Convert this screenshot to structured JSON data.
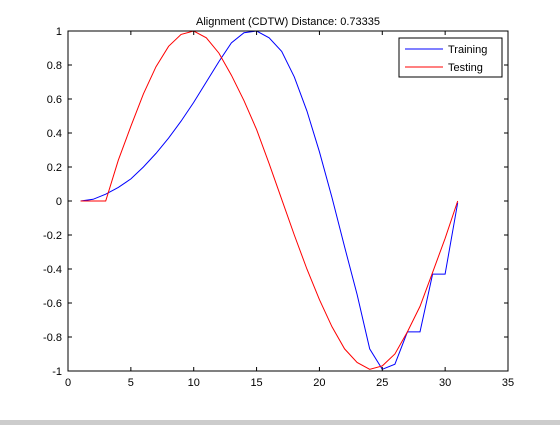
{
  "chart_data": {
    "type": "line",
    "title": "Alignment (CDTW) Distance:  0.73335",
    "xlabel": "",
    "ylabel": "",
    "xlim": [
      0,
      35
    ],
    "ylim": [
      -1,
      1
    ],
    "xticks": [
      0,
      5,
      10,
      15,
      20,
      25,
      30,
      35
    ],
    "yticks": [
      -1,
      -0.8,
      -0.6,
      -0.4,
      -0.2,
      0,
      0.2,
      0.4,
      0.6,
      0.8,
      1
    ],
    "grid": false,
    "legend_position": "top-right",
    "series": [
      {
        "name": "Training",
        "color": "#0000ff",
        "x": [
          1,
          2,
          3,
          4,
          5,
          6,
          7,
          8,
          9,
          10,
          11,
          12,
          13,
          14,
          15,
          16,
          17,
          18,
          19,
          20,
          21,
          22,
          23,
          24,
          25,
          26,
          27,
          28,
          29,
          30,
          31
        ],
        "y": [
          0,
          0.01,
          0.04,
          0.08,
          0.13,
          0.2,
          0.28,
          0.37,
          0.47,
          0.58,
          0.7,
          0.82,
          0.93,
          0.99,
          1.0,
          0.96,
          0.88,
          0.73,
          0.53,
          0.29,
          0.02,
          -0.27,
          -0.55,
          -0.87,
          -0.99,
          -0.96,
          -0.77,
          -0.77,
          -0.43,
          -0.43,
          -0.01
        ]
      },
      {
        "name": "Testing",
        "color": "#ff0000",
        "x": [
          1,
          2,
          3,
          4,
          5,
          6,
          7,
          8,
          9,
          10,
          11,
          12,
          13,
          14,
          15,
          16,
          17,
          18,
          19,
          20,
          21,
          22,
          23,
          24,
          25,
          26,
          27,
          28,
          29,
          30,
          31
        ],
        "y": [
          0,
          0,
          0,
          0.24,
          0.44,
          0.63,
          0.79,
          0.91,
          0.98,
          1.0,
          0.96,
          0.87,
          0.74,
          0.59,
          0.42,
          0.22,
          0.01,
          -0.2,
          -0.4,
          -0.58,
          -0.74,
          -0.87,
          -0.95,
          -0.99,
          -0.97,
          -0.9,
          -0.77,
          -0.62,
          -0.42,
          -0.22,
          0
        ]
      }
    ]
  }
}
